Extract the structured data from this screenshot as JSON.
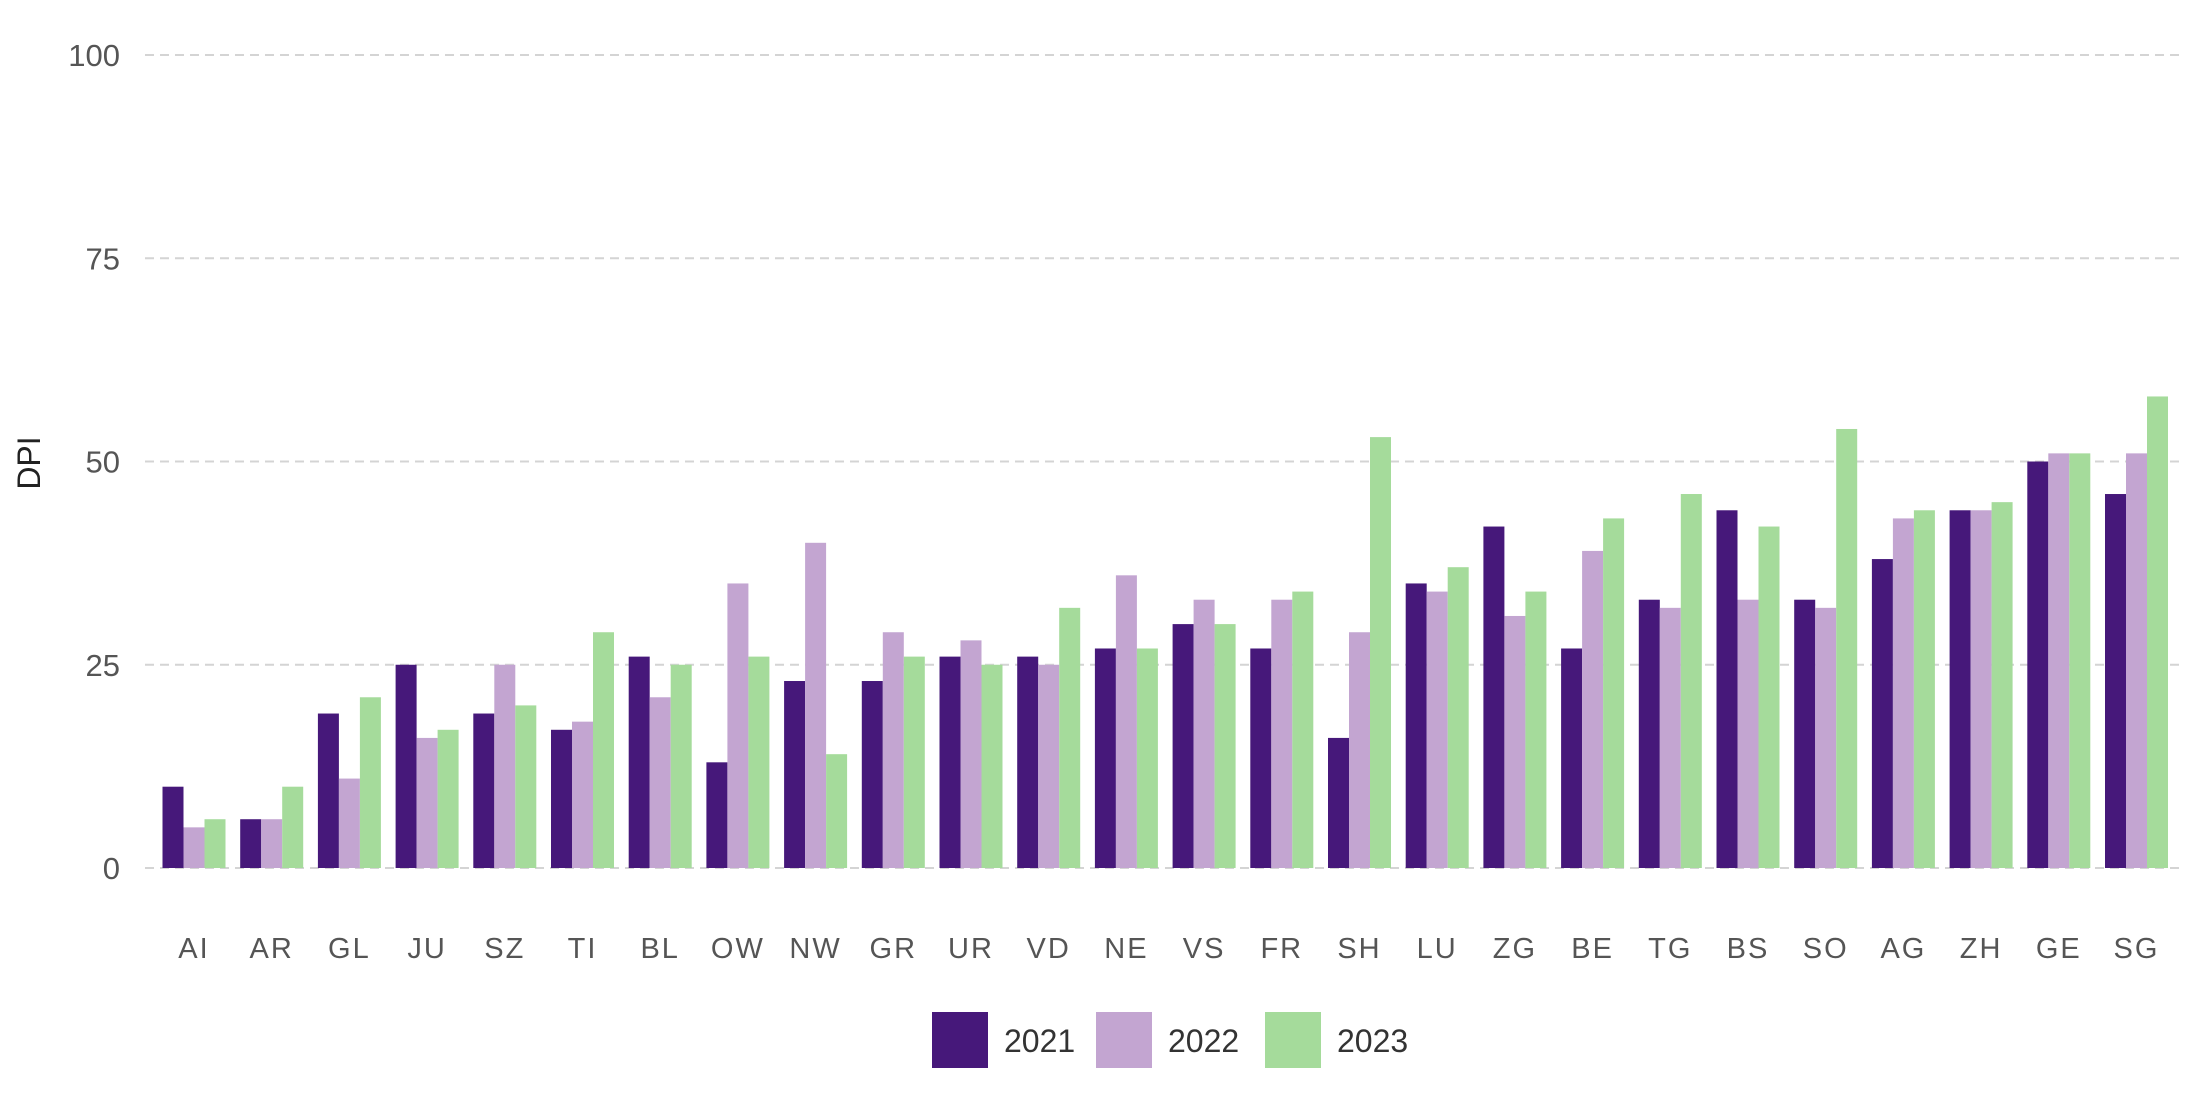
{
  "chart_data": {
    "type": "bar",
    "ylabel": "DPI",
    "ylim": [
      0,
      100
    ],
    "yticks": [
      0,
      25,
      50,
      75,
      100
    ],
    "grid": true,
    "legend_position": "bottom",
    "categories": [
      "AI",
      "AR",
      "GL",
      "JU",
      "SZ",
      "TI",
      "BL",
      "OW",
      "NW",
      "GR",
      "UR",
      "VD",
      "NE",
      "VS",
      "FR",
      "SH",
      "LU",
      "ZG",
      "BE",
      "TG",
      "BS",
      "SO",
      "AG",
      "ZH",
      "GE",
      "SG"
    ],
    "series": [
      {
        "name": "2021",
        "color": "#46187a",
        "values": [
          10,
          6,
          19,
          25,
          19,
          17,
          26,
          13,
          23,
          23,
          26,
          26,
          27,
          30,
          27,
          16,
          35,
          42,
          27,
          33,
          44,
          33,
          38,
          44,
          50,
          46
        ]
      },
      {
        "name": "2022",
        "color": "#c3a5d1",
        "values": [
          5,
          6,
          11,
          16,
          25,
          18,
          21,
          35,
          40,
          29,
          28,
          25,
          36,
          33,
          33,
          29,
          34,
          31,
          39,
          32,
          33,
          32,
          43,
          44,
          51,
          51
        ]
      },
      {
        "name": "2023",
        "color": "#a5db9b",
        "values": [
          6,
          10,
          21,
          17,
          20,
          29,
          25,
          26,
          14,
          26,
          25,
          32,
          27,
          30,
          34,
          53,
          37,
          34,
          43,
          46,
          42,
          54,
          44,
          45,
          51,
          58
        ]
      }
    ]
  }
}
